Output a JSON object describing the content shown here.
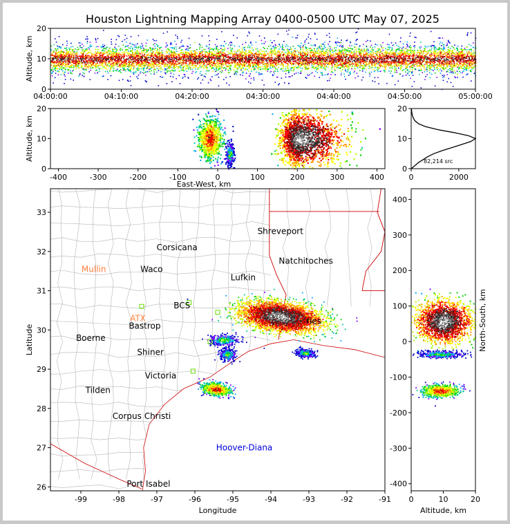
{
  "title": "Houston Lightning Mapping Array 0400-0500 UTC May 07, 2025",
  "colors": {
    "density_scale": [
      "#0000cc",
      "#7f00ff",
      "#00a0ff",
      "#00c8a0",
      "#00d000",
      "#b0ff00",
      "#ffff00",
      "#ff9c00",
      "#ff0000",
      "#990000",
      "#303030",
      "#909090",
      "#ffffff"
    ],
    "border_state": "#cc0000",
    "border_county": "#b4b4b4",
    "network_site": "#66dd00",
    "label_orange": "#ff7f3c",
    "label_blue": "#0000dd",
    "label_black": "#000000"
  },
  "chart_data": [
    {
      "id": "time-altitude",
      "type": "heatmap",
      "ylabel": "Altitude, km",
      "ylim": [
        0,
        20
      ],
      "yticks": [
        "0",
        "10",
        "20"
      ],
      "xlim": [
        "04:00:00",
        "05:00:00"
      ],
      "xticks": [
        "04:00:00",
        "04:10:00",
        "04:20:00",
        "04:30:00",
        "04:40:00",
        "04:50:00",
        "05:00:00"
      ],
      "density_band": {
        "altitude_center_km": 10,
        "core_altitude_km": [
          8,
          12
        ],
        "extent_km": [
          2,
          18
        ]
      }
    },
    {
      "id": "ew-altitude",
      "type": "heatmap",
      "xlabel": "East-West, km",
      "ylabel": "Altitude, km",
      "xlim": [
        -420,
        420
      ],
      "xticks": [
        "-400",
        "-300",
        "-200",
        "-100",
        "0",
        "100",
        "200",
        "300",
        "400"
      ],
      "ylim": [
        0,
        20
      ],
      "yticks": [
        "0",
        "10",
        "20"
      ],
      "clusters": [
        {
          "x_range": [
            -50,
            10
          ],
          "altitude_range": [
            3,
            18
          ],
          "peak_altitude": 10,
          "peak": "medium"
        },
        {
          "x_range": [
            20,
            40
          ],
          "altitude_range": [
            2,
            10
          ],
          "peak_altitude": 5,
          "peak": "low"
        },
        {
          "x_range": [
            100,
            310
          ],
          "altitude_range": [
            1,
            20
          ],
          "peak_altitude": 10,
          "peak": "high"
        }
      ]
    },
    {
      "id": "altitude-histogram",
      "type": "line",
      "xlim": [
        0,
        2700
      ],
      "xticks": [
        "0",
        "2000"
      ],
      "ylim": [
        0,
        20
      ],
      "yticks": [
        "0",
        "10",
        "20"
      ],
      "annotation": "82,214 src",
      "points": [
        [
          0,
          0
        ],
        [
          150,
          1
        ],
        [
          300,
          2
        ],
        [
          500,
          3
        ],
        [
          700,
          4
        ],
        [
          950,
          5
        ],
        [
          1300,
          6
        ],
        [
          1700,
          7
        ],
        [
          2100,
          8
        ],
        [
          2500,
          9
        ],
        [
          2700,
          10
        ],
        [
          2400,
          11
        ],
        [
          1800,
          12
        ],
        [
          1100,
          13
        ],
        [
          600,
          14
        ],
        [
          300,
          15
        ],
        [
          150,
          16
        ],
        [
          80,
          17
        ],
        [
          40,
          18
        ],
        [
          20,
          19
        ],
        [
          10,
          20
        ]
      ]
    },
    {
      "id": "plan-view-map",
      "type": "heatmap",
      "xlabel": "Longitude",
      "ylabel": "Latitude",
      "xlim": [
        -99.8,
        -91
      ],
      "xticks": [
        "-99",
        "-98",
        "-97",
        "-96",
        "-95",
        "-94",
        "-93",
        "-92",
        "-91"
      ],
      "ylim": [
        25.9,
        33.6
      ],
      "yticks": [
        "26",
        "27",
        "28",
        "29",
        "30",
        "31",
        "32",
        "33"
      ],
      "places": [
        {
          "name": "Shreveport",
          "lon": -93.75,
          "lat": 32.52,
          "color": "label_black"
        },
        {
          "name": "Corsicana",
          "lon": -96.47,
          "lat": 32.1,
          "color": "label_black"
        },
        {
          "name": "Natchitoches",
          "lon": -93.08,
          "lat": 31.76,
          "color": "label_black"
        },
        {
          "name": "Mullin",
          "lon": -98.66,
          "lat": 31.55,
          "color": "label_orange"
        },
        {
          "name": "Waco",
          "lon": -97.14,
          "lat": 31.55,
          "color": "label_black"
        },
        {
          "name": "Lufkin",
          "lon": -94.73,
          "lat": 31.34,
          "color": "label_black"
        },
        {
          "name": "BCS",
          "lon": -96.34,
          "lat": 30.62,
          "color": "label_black"
        },
        {
          "name": "ATX",
          "lon": -97.5,
          "lat": 30.3,
          "color": "label_orange"
        },
        {
          "name": "Bastrop",
          "lon": -97.32,
          "lat": 30.1,
          "color": "label_black"
        },
        {
          "name": "Boerne",
          "lon": -98.74,
          "lat": 29.79,
          "color": "label_black"
        },
        {
          "name": "Shiner",
          "lon": -97.17,
          "lat": 29.43,
          "color": "label_black"
        },
        {
          "name": "Victoria",
          "lon": -96.9,
          "lat": 28.83,
          "color": "label_black"
        },
        {
          "name": "Tilden",
          "lon": -98.55,
          "lat": 28.46,
          "color": "label_black"
        },
        {
          "name": "Corpus Christi",
          "lon": -97.4,
          "lat": 27.8,
          "color": "label_black"
        },
        {
          "name": "Hoover-Diana",
          "lon": -94.7,
          "lat": 27.0,
          "color": "label_blue"
        },
        {
          "name": "Port Isabel",
          "lon": -97.22,
          "lat": 26.08,
          "color": "label_black"
        },
        {
          "name": "Lake Charles",
          "lon": -93.2,
          "lat": 30.23,
          "color": "label_black"
        }
      ],
      "visible_place_labels": [
        "Shreveport",
        "Corsicana",
        "Natchitoches",
        "Mullin",
        "Waco",
        "Lufkin",
        "BCS",
        "ATX",
        "Bastrop",
        "Boerne",
        "Shiner",
        "Victoria",
        "Tilden",
        "Corpus Christi",
        "Hoover-Diana",
        "Port Isabel",
        "ries"
      ],
      "network_sites": [
        [
          -97.4,
          30.6
        ],
        [
          -96.15,
          30.7
        ],
        [
          -95.4,
          30.45
        ],
        [
          -96.05,
          28.95
        ],
        [
          -95.6,
          29.7
        ]
      ],
      "storms": [
        {
          "lon": -93.75,
          "lat": 30.35,
          "lon_span": 2.2,
          "lat_span": 0.7,
          "peak": "high",
          "angle": -20
        },
        {
          "lon": -95.45,
          "lat": 28.5,
          "lon_span": 0.8,
          "lat_span": 0.3,
          "peak": "medium",
          "angle": -25
        },
        {
          "lon": -93.1,
          "lat": 29.42,
          "lon_span": 0.5,
          "lat_span": 0.2,
          "peak": "low",
          "angle": -15
        },
        {
          "lon": -95.25,
          "lat": 29.75,
          "lon_span": 0.8,
          "lat_span": 0.3,
          "peak": "low",
          "angle": 0
        },
        {
          "lon": -95.15,
          "lat": 29.38,
          "lon_span": 0.4,
          "lat_span": 0.3,
          "peak": "low",
          "angle": 0
        }
      ]
    },
    {
      "id": "ns-altitude",
      "type": "heatmap",
      "xlabel": "Altitude, km",
      "ylabel": "North-South, km",
      "xlim": [
        0,
        20
      ],
      "xticks": [
        "0",
        "10",
        "20"
      ],
      "ylim": [
        -420,
        430
      ],
      "yticks": [
        "-400",
        "-300",
        "-200",
        "-100",
        "0",
        "100",
        "200",
        "300",
        "400"
      ],
      "clusters": [
        {
          "altitude_range": [
            1,
            20
          ],
          "y_range": [
            0,
            115
          ],
          "peak_altitude": 10,
          "peak": "high"
        },
        {
          "altitude_range": [
            2,
            17
          ],
          "y_range": [
            -45,
            -25
          ],
          "peak_altitude": 9,
          "peak": "low"
        },
        {
          "altitude_range": [
            3,
            16
          ],
          "y_range": [
            -155,
            -120
          ],
          "peak_altitude": 9,
          "peak": "medium"
        }
      ]
    }
  ]
}
